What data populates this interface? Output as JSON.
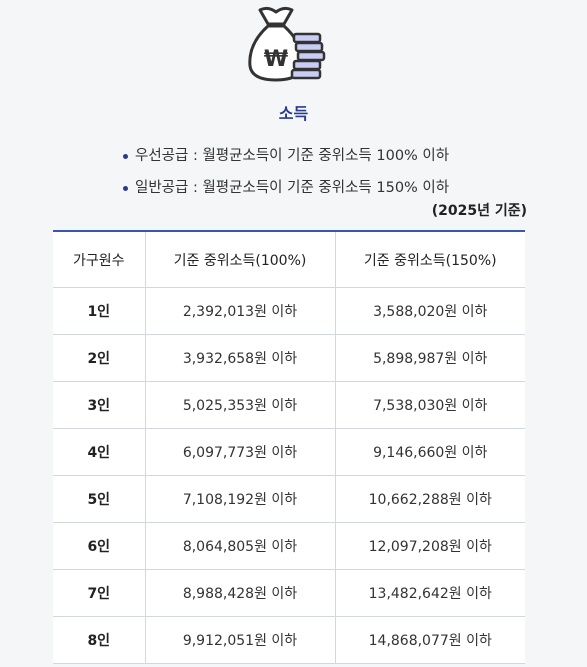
{
  "section": {
    "title": "소득"
  },
  "bullets": [
    "우선공급 : 월평균소득이 기준 중위소득 100% 이하",
    "일반공급 : 월평균소득이 기준 중위소득 150% 이하"
  ],
  "year_note": "(2025년 기준)",
  "icon": {
    "name": "money-bag-won-icon",
    "symbol": "₩",
    "accent": "#c9ccf4",
    "stroke": "#333333"
  },
  "table": {
    "headers": [
      "가구원수",
      "기준 중위소득(100%)",
      "기준 중위소득(150%)"
    ],
    "rows": [
      [
        "1인",
        "2,392,013원 이하",
        "3,588,020원 이하"
      ],
      [
        "2인",
        "3,932,658원 이하",
        "5,898,987원 이하"
      ],
      [
        "3인",
        "5,025,353원 이하",
        "7,538,030원 이하"
      ],
      [
        "4인",
        "6,097,773원 이하",
        "9,146,660원 이하"
      ],
      [
        "5인",
        "7,108,192원 이하",
        "10,662,288원 이하"
      ],
      [
        "6인",
        "8,064,805원 이하",
        "12,097,208원 이하"
      ],
      [
        "7인",
        "8,988,428원 이하",
        "13,482,642원 이하"
      ],
      [
        "8인",
        "9,912,051원 이하",
        "14,868,077원 이하"
      ]
    ]
  },
  "colors": {
    "accent_blue": "#3a56b4",
    "title_blue": "#2a3b8f"
  }
}
